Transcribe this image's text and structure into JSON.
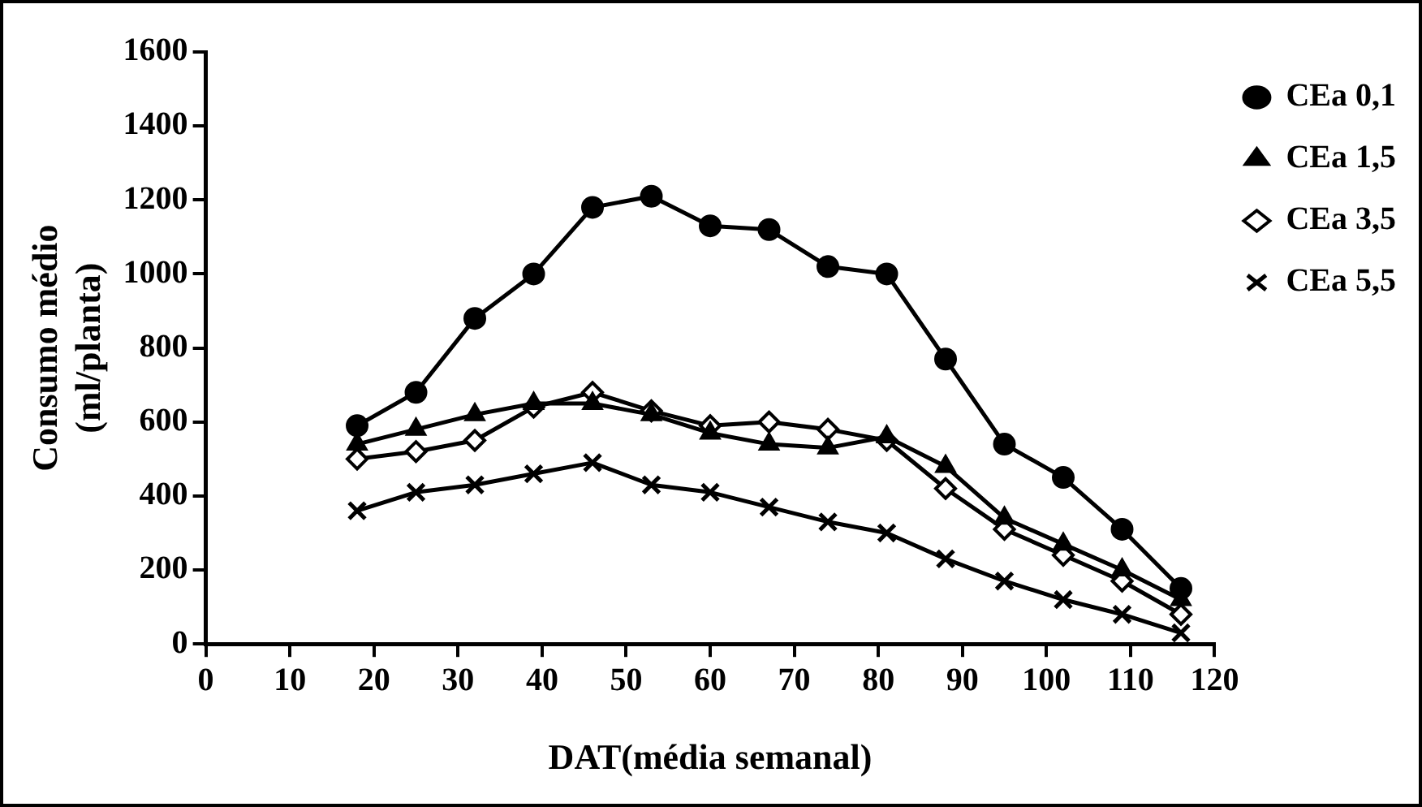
{
  "chart_data": {
    "type": "line",
    "xlabel": "DAT(média semanal)",
    "ylabel": "Consumo médio (ml/planta)",
    "x": [
      18,
      25,
      32,
      39,
      46,
      53,
      60,
      67,
      74,
      81,
      88,
      95,
      102,
      109,
      116
    ],
    "xlim": [
      0,
      120
    ],
    "xticks": [
      0,
      10,
      20,
      30,
      40,
      50,
      60,
      70,
      80,
      90,
      100,
      110,
      120
    ],
    "ylim": [
      0,
      1600
    ],
    "yticks": [
      0,
      200,
      400,
      600,
      800,
      1000,
      1200,
      1400,
      1600
    ],
    "grid": false,
    "legend": "top right",
    "line_style": "solid",
    "series": [
      {
        "name": "CEa 0,1",
        "color": "#000000",
        "marker": "circle",
        "values": [
          590,
          680,
          880,
          1000,
          1180,
          1210,
          1130,
          1120,
          1020,
          1000,
          770,
          540,
          450,
          310,
          150
        ]
      },
      {
        "name": "CEa 1,5",
        "color": "#000000",
        "marker": "triangle",
        "values": [
          540,
          580,
          620,
          650,
          650,
          620,
          570,
          540,
          530,
          560,
          480,
          340,
          270,
          200,
          120
        ]
      },
      {
        "name": "CEa 3,5",
        "color": "#000000",
        "marker": "diamond",
        "values": [
          500,
          520,
          550,
          640,
          680,
          630,
          590,
          600,
          580,
          550,
          420,
          310,
          240,
          170,
          80
        ]
      },
      {
        "name": "CEa 5,5",
        "color": "#000000",
        "marker": "cross",
        "values": [
          360,
          410,
          430,
          460,
          490,
          430,
          410,
          370,
          330,
          300,
          230,
          170,
          120,
          80,
          30
        ]
      }
    ]
  }
}
